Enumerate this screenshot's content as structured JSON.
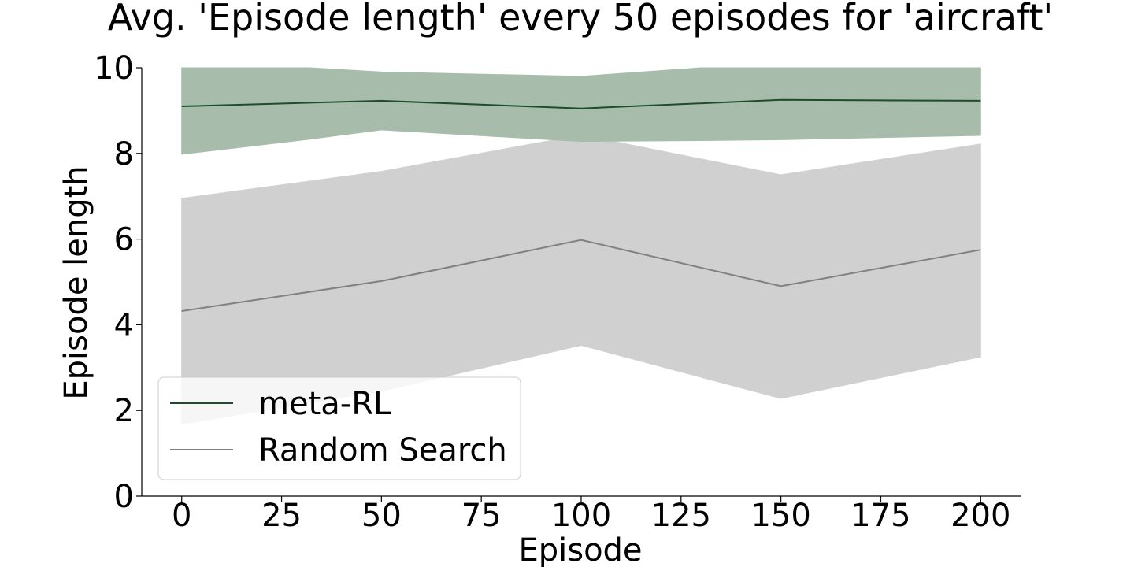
{
  "chart_data": {
    "type": "line",
    "title": "Avg. 'Episode length' every 50 episodes for 'aircraft'",
    "xlabel": "Episode",
    "ylabel": "Episode length",
    "xlim": [
      -10,
      210
    ],
    "ylim": [
      0,
      10
    ],
    "x_ticks": [
      0,
      25,
      50,
      75,
      100,
      125,
      150,
      175,
      200
    ],
    "y_ticks": [
      0,
      2,
      4,
      6,
      8,
      10
    ],
    "grid": false,
    "legend_position": "lower-left",
    "x": [
      0,
      50,
      100,
      150,
      200
    ],
    "series": [
      {
        "name": "meta-RL",
        "color": "#1e4d2b",
        "band_color": "#a7bcab",
        "mean": [
          9.1,
          9.23,
          9.05,
          9.25,
          9.23
        ],
        "band_points": [
          {
            "x": 0,
            "lower": 7.98,
            "upper": 10.0
          },
          {
            "x": 32,
            "lower": 8.33,
            "upper": 10.0
          },
          {
            "x": 50,
            "lower": 8.55,
            "upper": 9.9
          },
          {
            "x": 100,
            "lower": 8.28,
            "upper": 9.8
          },
          {
            "x": 130,
            "lower": 8.3,
            "upper": 10.0
          },
          {
            "x": 150,
            "lower": 8.32,
            "upper": 10.0
          },
          {
            "x": 200,
            "lower": 8.42,
            "upper": 10.0
          }
        ]
      },
      {
        "name": "Random Search",
        "color": "#808080",
        "band_color": "#d0d0d0",
        "mean": [
          4.32,
          5.02,
          5.98,
          4.9,
          5.75
        ],
        "band_points": [
          {
            "x": 0,
            "lower": 1.68,
            "upper": 6.95
          },
          {
            "x": 50,
            "lower": 2.45,
            "upper": 7.58
          },
          {
            "x": 100,
            "lower": 3.52,
            "upper": 8.43
          },
          {
            "x": 150,
            "lower": 2.28,
            "upper": 7.5
          },
          {
            "x": 200,
            "lower": 3.25,
            "upper": 8.22
          }
        ]
      }
    ]
  }
}
